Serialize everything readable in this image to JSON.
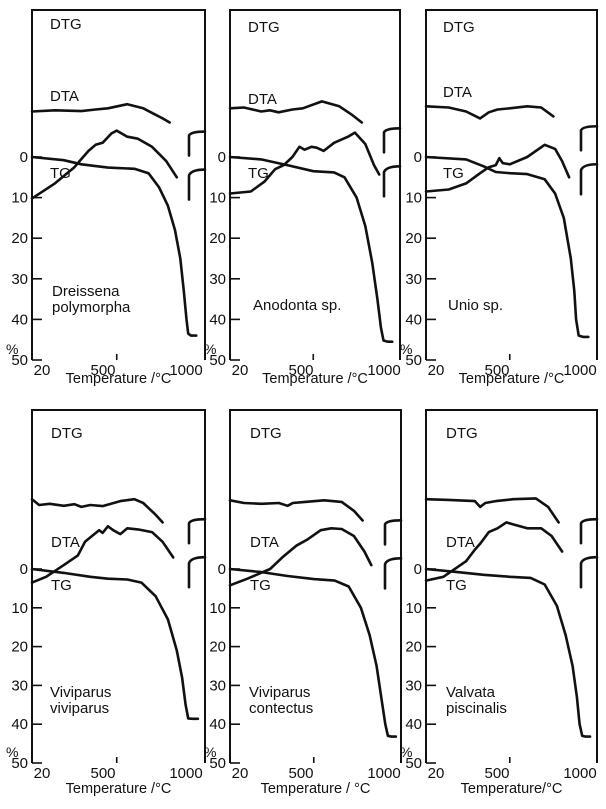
{
  "chart_data": [
    {
      "type": "line",
      "species": [
        "Dreissena",
        "polymorpha"
      ],
      "xlabel": "Temperature /°C",
      "ylabel": "%",
      "xticks": [
        20,
        500,
        1000
      ],
      "yticks": [
        0,
        10,
        20,
        30,
        40,
        50
      ],
      "xlim": [
        20,
        1000
      ],
      "ylim": [
        0,
        50
      ],
      "curve_labels": [
        "DTG",
        "DTA",
        "TG"
      ],
      "tg": [
        [
          20,
          0
        ],
        [
          200,
          0.8
        ],
        [
          300,
          1.8
        ],
        [
          450,
          2.6
        ],
        [
          600,
          2.9
        ],
        [
          680,
          4
        ],
        [
          740,
          7.5
        ],
        [
          790,
          12
        ],
        [
          830,
          18
        ],
        [
          860,
          25
        ],
        [
          880,
          33
        ],
        [
          895,
          40
        ],
        [
          905,
          43.5
        ],
        [
          920,
          44
        ],
        [
          950,
          44
        ]
      ],
      "dta": [
        [
          20,
          10.2
        ],
        [
          150,
          6.5
        ],
        [
          260,
          2.5
        ],
        [
          300,
          0.5
        ],
        [
          340,
          -1.5
        ],
        [
          380,
          -3
        ],
        [
          420,
          -3.5
        ],
        [
          470,
          -5.8
        ],
        [
          500,
          -6.5
        ],
        [
          560,
          -5
        ],
        [
          620,
          -4.5
        ],
        [
          700,
          -2.5
        ],
        [
          780,
          1
        ],
        [
          840,
          5
        ]
      ],
      "dtg": [
        [
          20,
          -11.2
        ],
        [
          150,
          -11.5
        ],
        [
          300,
          -11.3
        ],
        [
          380,
          -11.7
        ],
        [
          450,
          -12
        ],
        [
          560,
          -13
        ],
        [
          650,
          -12
        ],
        [
          760,
          -9.5
        ],
        [
          800,
          -8.5
        ]
      ]
    },
    {
      "type": "line",
      "species": [
        "Anodonta sp."
      ],
      "xlabel": "Temperature /°C",
      "ylabel": "%",
      "xticks": [
        20,
        500,
        1000
      ],
      "yticks": [
        0,
        10,
        20,
        30,
        40,
        50
      ],
      "xlim": [
        20,
        1000
      ],
      "ylim": [
        0,
        50
      ],
      "curve_labels": [
        "DTG",
        "DTA",
        "TG"
      ],
      "tg": [
        [
          20,
          0
        ],
        [
          200,
          0.6
        ],
        [
          350,
          2
        ],
        [
          500,
          3.5
        ],
        [
          620,
          3.8
        ],
        [
          680,
          5
        ],
        [
          750,
          10
        ],
        [
          800,
          17
        ],
        [
          840,
          26
        ],
        [
          870,
          35
        ],
        [
          890,
          42
        ],
        [
          905,
          45.2
        ],
        [
          930,
          45.5
        ],
        [
          955,
          45.5
        ]
      ],
      "dta": [
        [
          20,
          9
        ],
        [
          140,
          8.5
        ],
        [
          220,
          6
        ],
        [
          280,
          3
        ],
        [
          330,
          2
        ],
        [
          380,
          0
        ],
        [
          420,
          -2.5
        ],
        [
          450,
          -1.8
        ],
        [
          490,
          -2.5
        ],
        [
          520,
          -2.3
        ],
        [
          560,
          -1.5
        ],
        [
          620,
          -3.5
        ],
        [
          700,
          -5
        ],
        [
          740,
          -6
        ],
        [
          800,
          -3.2
        ],
        [
          850,
          2
        ],
        [
          880,
          4.3
        ]
      ],
      "dtg": [
        [
          20,
          -12
        ],
        [
          100,
          -12.2
        ],
        [
          200,
          -11.2
        ],
        [
          250,
          -11.5
        ],
        [
          300,
          -11
        ],
        [
          380,
          -11.7
        ],
        [
          440,
          -12
        ],
        [
          550,
          -13.7
        ],
        [
          650,
          -12.5
        ],
        [
          720,
          -10.5
        ],
        [
          780,
          -8.5
        ]
      ]
    },
    {
      "type": "line",
      "species": [
        "Unio sp."
      ],
      "xlabel": "Temperature /°C",
      "ylabel": "%",
      "xticks": [
        20,
        500,
        1000
      ],
      "yticks": [
        0,
        10,
        20,
        30,
        40,
        50
      ],
      "xlim": [
        20,
        1000
      ],
      "ylim": [
        0,
        50
      ],
      "curve_labels": [
        "DTG",
        "DTA",
        "TG"
      ],
      "tg": [
        [
          20,
          0
        ],
        [
          250,
          0.6
        ],
        [
          350,
          2.3
        ],
        [
          420,
          3.7
        ],
        [
          500,
          4
        ],
        [
          600,
          4.2
        ],
        [
          700,
          5.5
        ],
        [
          760,
          9
        ],
        [
          810,
          15
        ],
        [
          850,
          25
        ],
        [
          870,
          33
        ],
        [
          880,
          40
        ],
        [
          895,
          44
        ],
        [
          920,
          44.3
        ],
        [
          950,
          44.3
        ]
      ],
      "dta": [
        [
          20,
          8.5
        ],
        [
          150,
          8
        ],
        [
          250,
          6.5
        ],
        [
          330,
          4
        ],
        [
          380,
          2.5
        ],
        [
          420,
          2
        ],
        [
          440,
          0.3
        ],
        [
          460,
          1.5
        ],
        [
          500,
          1.8
        ],
        [
          600,
          0
        ],
        [
          700,
          -3
        ],
        [
          760,
          -2
        ],
        [
          800,
          1
        ],
        [
          840,
          5
        ]
      ],
      "dtg": [
        [
          20,
          -12.5
        ],
        [
          150,
          -12.2
        ],
        [
          250,
          -11.2
        ],
        [
          330,
          -9.5
        ],
        [
          380,
          -11
        ],
        [
          430,
          -11.7
        ],
        [
          500,
          -12
        ],
        [
          600,
          -12.5
        ],
        [
          680,
          -12.2
        ],
        [
          750,
          -10
        ]
      ]
    },
    {
      "type": "line",
      "species": [
        "Viviparus",
        "viviparus"
      ],
      "xlabel": "Temperature /°C",
      "ylabel": "%",
      "xticks": [
        20,
        500,
        1000
      ],
      "yticks": [
        0,
        10,
        20,
        30,
        40,
        50
      ],
      "xlim": [
        20,
        1000
      ],
      "ylim": [
        0,
        50
      ],
      "curve_labels": [
        "DTG",
        "DTA",
        "TG"
      ],
      "tg": [
        [
          20,
          0
        ],
        [
          200,
          1
        ],
        [
          350,
          2
        ],
        [
          450,
          2.5
        ],
        [
          560,
          2.7
        ],
        [
          640,
          3.5
        ],
        [
          720,
          7
        ],
        [
          790,
          13
        ],
        [
          840,
          21
        ],
        [
          870,
          28
        ],
        [
          890,
          35
        ],
        [
          905,
          38.5
        ],
        [
          930,
          38.6
        ],
        [
          960,
          38.6
        ]
      ],
      "dta": [
        [
          20,
          3.5
        ],
        [
          100,
          2
        ],
        [
          200,
          -1
        ],
        [
          280,
          -3.5
        ],
        [
          320,
          -7
        ],
        [
          360,
          -8.5
        ],
        [
          400,
          -10
        ],
        [
          420,
          -9.3
        ],
        [
          450,
          -11
        ],
        [
          480,
          -10
        ],
        [
          520,
          -9
        ],
        [
          560,
          -10.5
        ],
        [
          620,
          -10.2
        ],
        [
          700,
          -9.5
        ],
        [
          760,
          -7
        ],
        [
          820,
          -3
        ]
      ],
      "dtg": [
        [
          20,
          -18
        ],
        [
          60,
          -16.5
        ],
        [
          120,
          -16.8
        ],
        [
          200,
          -16.3
        ],
        [
          260,
          -16.7
        ],
        [
          300,
          -16
        ],
        [
          350,
          -16.5
        ],
        [
          420,
          -16.2
        ],
        [
          520,
          -17.5
        ],
        [
          600,
          -18
        ],
        [
          650,
          -17
        ],
        [
          720,
          -14
        ],
        [
          760,
          -12
        ]
      ]
    },
    {
      "type": "line",
      "species": [
        "Viviparus",
        "contectus"
      ],
      "xlabel": "Temperature / °C",
      "ylabel": "%",
      "xticks": [
        20,
        500,
        1000
      ],
      "yticks": [
        0,
        10,
        20,
        30,
        40,
        50
      ],
      "xlim": [
        20,
        1000
      ],
      "ylim": [
        0,
        50
      ],
      "curve_labels": [
        "DTG",
        "DTA",
        "TG"
      ],
      "tg": [
        [
          20,
          0
        ],
        [
          200,
          0.8
        ],
        [
          350,
          1.8
        ],
        [
          500,
          2.6
        ],
        [
          620,
          3
        ],
        [
          700,
          4.5
        ],
        [
          770,
          10
        ],
        [
          820,
          17
        ],
        [
          860,
          25
        ],
        [
          890,
          34
        ],
        [
          910,
          40
        ],
        [
          925,
          43
        ],
        [
          945,
          43.2
        ],
        [
          970,
          43.2
        ]
      ],
      "dta": [
        [
          20,
          4.2
        ],
        [
          120,
          2.5
        ],
        [
          250,
          0
        ],
        [
          320,
          -3
        ],
        [
          400,
          -6
        ],
        [
          460,
          -7.5
        ],
        [
          540,
          -10
        ],
        [
          600,
          -10.5
        ],
        [
          660,
          -10.3
        ],
        [
          730,
          -8.5
        ],
        [
          790,
          -4.5
        ],
        [
          830,
          -1
        ]
      ],
      "dtg": [
        [
          20,
          -17.7
        ],
        [
          100,
          -17
        ],
        [
          200,
          -16.8
        ],
        [
          300,
          -17
        ],
        [
          350,
          -16.3
        ],
        [
          380,
          -17
        ],
        [
          450,
          -17.3
        ],
        [
          560,
          -17.7
        ],
        [
          660,
          -17.3
        ],
        [
          730,
          -15
        ],
        [
          780,
          -12.5
        ]
      ]
    },
    {
      "type": "line",
      "species": [
        "Valvata",
        "piscinalis"
      ],
      "xlabel": "Temperature/°C",
      "ylabel": "%",
      "xticks": [
        20,
        500,
        1000
      ],
      "yticks": [
        0,
        10,
        20,
        30,
        40,
        50
      ],
      "xlim": [
        20,
        1000
      ],
      "ylim": [
        0,
        50
      ],
      "curve_labels": [
        "DTG",
        "DTA",
        "TG"
      ],
      "tg": [
        [
          20,
          0
        ],
        [
          200,
          0.8
        ],
        [
          350,
          1.5
        ],
        [
          500,
          2
        ],
        [
          620,
          2.3
        ],
        [
          700,
          4
        ],
        [
          770,
          9.5
        ],
        [
          820,
          17
        ],
        [
          860,
          25
        ],
        [
          885,
          33
        ],
        [
          900,
          40
        ],
        [
          915,
          43
        ],
        [
          935,
          43.2
        ],
        [
          960,
          43.2
        ]
      ],
      "dta": [
        [
          20,
          3
        ],
        [
          120,
          2
        ],
        [
          250,
          -2
        ],
        [
          300,
          -5
        ],
        [
          330,
          -6.5
        ],
        [
          380,
          -9.5
        ],
        [
          430,
          -10.5
        ],
        [
          480,
          -12
        ],
        [
          520,
          -11.5
        ],
        [
          600,
          -10.5
        ],
        [
          680,
          -10.5
        ],
        [
          740,
          -8.5
        ],
        [
          800,
          -4.5
        ]
      ],
      "dtg": [
        [
          20,
          -18
        ],
        [
          150,
          -17.8
        ],
        [
          300,
          -17.5
        ],
        [
          330,
          -16
        ],
        [
          360,
          -17
        ],
        [
          420,
          -17.5
        ],
        [
          520,
          -18
        ],
        [
          650,
          -18.2
        ],
        [
          720,
          -16
        ],
        [
          780,
          -12
        ]
      ]
    }
  ]
}
